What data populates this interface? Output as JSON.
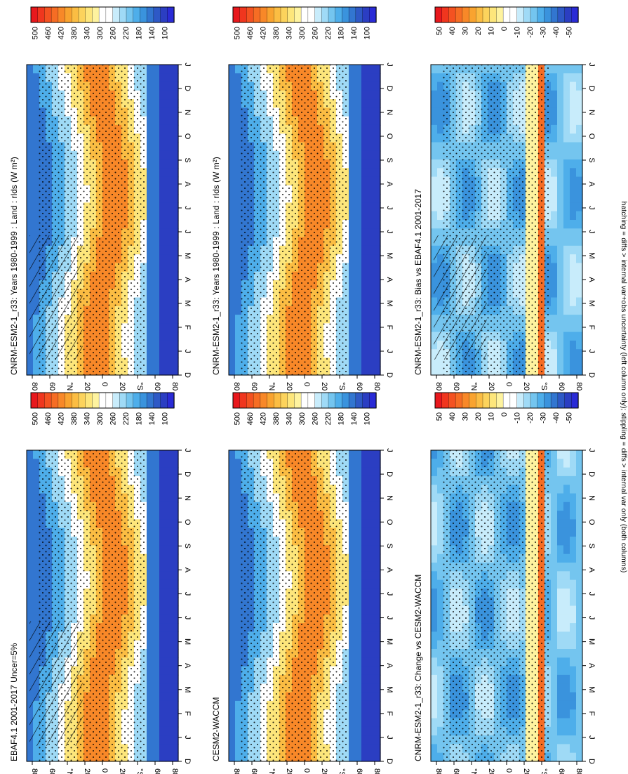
{
  "footnote": "hatching = diffs > internal var+obs uncertainty (left column only); stippling = diffs > internal var only (both columns)",
  "palettes": {
    "absolute": [
      "#e8181d",
      "#f0361e",
      "#f45221",
      "#f66d24",
      "#f88828",
      "#f9a32f",
      "#fbbd43",
      "#fcd35c",
      "#fde67b",
      "#fef39f",
      "#ffffff",
      "#ffffff",
      "#c8ecfb",
      "#9fdaf6",
      "#74c5ef",
      "#4eaeea",
      "#3a93dd",
      "#3276d0",
      "#2e59c6",
      "#2b3ec2",
      "#2a2bd6"
    ],
    "difference": [
      "#e8181d",
      "#f0361e",
      "#f45221",
      "#f66d24",
      "#f88828",
      "#f9a32f",
      "#fbbd43",
      "#fcd35c",
      "#fde67b",
      "#fef39f",
      "#ffffff",
      "#ffffff",
      "#c8ecfb",
      "#9fdaf6",
      "#74c5ef",
      "#4eaeea",
      "#3a93dd",
      "#3276d0",
      "#2e59c6",
      "#2b3ec2",
      "#2a2bd6"
    ],
    "stipple": "#000000"
  },
  "chart_data": [
    {
      "type": "heatmap",
      "title": "CNRM-ESM2-1_r33: Years 1980-1999 : Land : rlds (W m²)",
      "x_ticklabels": [
        "D",
        "J",
        "F",
        "M",
        "A",
        "M",
        "J",
        "J",
        "A",
        "S",
        "O",
        "N",
        "D",
        "J"
      ],
      "y_ticklabels": [
        "80",
        "60",
        "°N",
        "20",
        "0",
        "20",
        "°S",
        "60",
        "80"
      ],
      "colorbar": {
        "ticks": [
          "500",
          "460",
          "420",
          "380",
          "340",
          "300",
          "260",
          "220",
          "180",
          "140",
          "100"
        ],
        "range": [
          80,
          520
        ]
      },
      "hatching": true,
      "stippling": true
    },
    {
      "type": "heatmap",
      "title": "CNRM-ESM2-1_r33: Years 1980-1999 : Land : rlds (W m²)",
      "x_ticklabels": [
        "D",
        "J",
        "F",
        "M",
        "A",
        "M",
        "J",
        "J",
        "A",
        "S",
        "O",
        "N",
        "D",
        "J"
      ],
      "y_ticklabels": [
        "80",
        "60",
        "°N",
        "20",
        "0",
        "20",
        "°S",
        "60",
        "80"
      ],
      "colorbar": {
        "ticks": [
          "500",
          "460",
          "420",
          "380",
          "340",
          "300",
          "260",
          "220",
          "180",
          "140",
          "100"
        ],
        "range": [
          80,
          520
        ]
      },
      "hatching": false,
      "stippling": true
    },
    {
      "type": "heatmap",
      "title": "EBAF4.1 2001-2017 Uncer=5%",
      "x_ticklabels": [
        "D",
        "J",
        "F",
        "M",
        "A",
        "M",
        "J",
        "J",
        "A",
        "S",
        "O",
        "N",
        "D",
        "J"
      ],
      "y_ticklabels": [
        "80",
        "60",
        "°N",
        "20",
        "0",
        "20",
        "°S",
        "60",
        "80"
      ],
      "colorbar": {
        "ticks": [
          "500",
          "460",
          "420",
          "380",
          "340",
          "300",
          "260",
          "220",
          "180",
          "140",
          "100"
        ],
        "range": [
          80,
          520
        ]
      },
      "hatching": true,
      "stippling": true
    },
    {
      "type": "heatmap",
      "title": "CESM2-WACCM",
      "x_ticklabels": [
        "D",
        "J",
        "F",
        "M",
        "A",
        "M",
        "J",
        "J",
        "A",
        "S",
        "O",
        "N",
        "D",
        "J"
      ],
      "y_ticklabels": [
        "80",
        "60",
        "°N",
        "20",
        "0",
        "20",
        "°S",
        "60",
        "80"
      ],
      "colorbar": {
        "ticks": [
          "500",
          "460",
          "420",
          "380",
          "340",
          "300",
          "260",
          "220",
          "180",
          "140",
          "100"
        ],
        "range": [
          80,
          520
        ]
      },
      "hatching": false,
      "stippling": true
    },
    {
      "type": "heatmap",
      "title": "CNRM-ESM2-1_r33: Bias vs EBAF4.1 2001-2017",
      "x_ticklabels": [
        "D",
        "J",
        "F",
        "M",
        "A",
        "M",
        "J",
        "J",
        "A",
        "S",
        "O",
        "N",
        "D",
        "J"
      ],
      "y_ticklabels": [
        "80",
        "60",
        "°N",
        "20",
        "0",
        "20",
        "°S",
        "60",
        "80"
      ],
      "colorbar": {
        "ticks": [
          "50",
          "40",
          "30",
          "20",
          "10",
          "0",
          "-10",
          "-20",
          "-30",
          "-40",
          "-50"
        ],
        "range": [
          -55,
          55
        ]
      },
      "hatching": true,
      "stippling": true
    },
    {
      "type": "heatmap",
      "title": "CNRM-ESM2-1_r33: Change vs CESM2-WACCM",
      "x_ticklabels": [
        "D",
        "J",
        "F",
        "M",
        "A",
        "M",
        "J",
        "J",
        "A",
        "S",
        "O",
        "N",
        "D",
        "J"
      ],
      "y_ticklabels": [
        "80",
        "60",
        "°N",
        "20",
        "0",
        "20",
        "°S",
        "60",
        "80"
      ],
      "colorbar": {
        "ticks": [
          "50",
          "40",
          "30",
          "20",
          "10",
          "0",
          "-10",
          "-20",
          "-30",
          "-40",
          "-50"
        ],
        "range": [
          -55,
          55
        ]
      },
      "hatching": false,
      "stippling": true
    }
  ]
}
